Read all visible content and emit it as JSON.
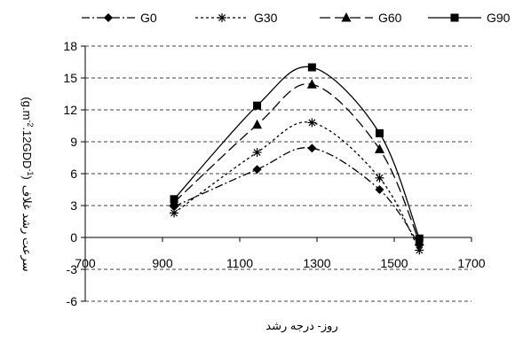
{
  "chart_data": {
    "type": "line",
    "xlabel": "روز- درجه رشد",
    "ylabel": "سرعت رشد غلاف (g.m-2.12GDD-1)",
    "ylabel_main": "سرعت رشد غلاف",
    "ylabel_unit_a": "(g.m",
    "ylabel_unit_sup1": "-2",
    "ylabel_unit_b": ".12GDD",
    "ylabel_unit_sup2": "-1",
    "ylabel_unit_c": ")",
    "xlim": [
      700,
      1700
    ],
    "ylim": [
      -6,
      18
    ],
    "x_ticks": [
      700,
      900,
      1100,
      1300,
      1500,
      1700
    ],
    "x_tick_labels": [
      "700",
      "900",
      "1100",
      "1300",
      "1500",
      "1700"
    ],
    "y_ticks": [
      -6,
      -3,
      0,
      3,
      6,
      9,
      12,
      15,
      18
    ],
    "y_tick_labels": [
      "-6",
      "-3",
      "0",
      "3",
      "6",
      "9",
      "12",
      "15",
      "18"
    ],
    "legend_position": "top",
    "grid": "horizontal-dashed",
    "series": [
      {
        "name": "G0",
        "marker": "diamond",
        "dash": "9 3 2 3",
        "color": "#000000",
        "x": [
          930,
          1145,
          1287,
          1462,
          1565
        ],
        "y": [
          2.9,
          6.4,
          8.4,
          4.5,
          -0.7
        ]
      },
      {
        "name": "G30",
        "marker": "asterisk",
        "dash": "3 3",
        "color": "#000000",
        "x": [
          930,
          1145,
          1287,
          1462,
          1565
        ],
        "y": [
          2.3,
          8.0,
          10.8,
          5.6,
          -1.2
        ]
      },
      {
        "name": "G60",
        "marker": "triangle",
        "dash": "12 5",
        "color": "#000000",
        "x": [
          930,
          1145,
          1287,
          1462,
          1565
        ],
        "y": [
          3.3,
          10.6,
          14.4,
          8.3,
          -0.4
        ]
      },
      {
        "name": "G90",
        "marker": "square",
        "dash": "",
        "color": "#000000",
        "x": [
          930,
          1145,
          1287,
          1462,
          1565
        ],
        "y": [
          3.6,
          12.4,
          16.0,
          9.8,
          -0.1
        ]
      }
    ]
  }
}
